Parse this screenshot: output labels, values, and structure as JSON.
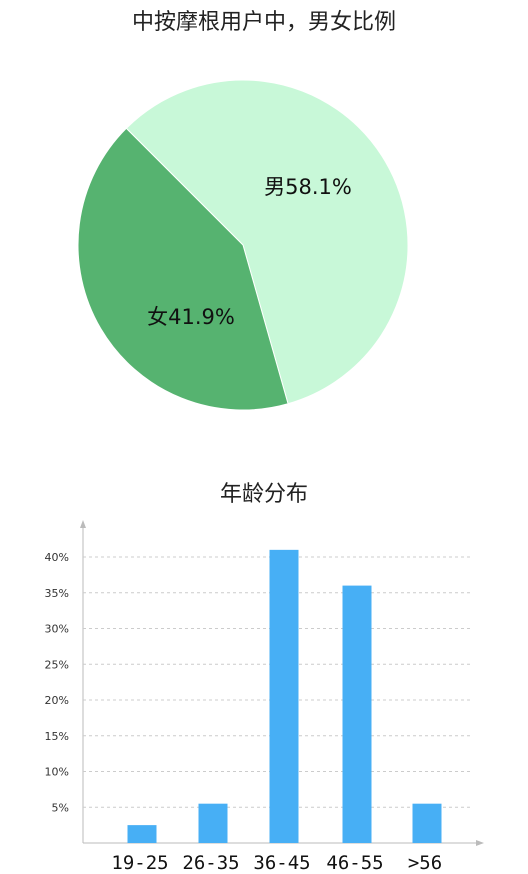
{
  "chart_data": [
    {
      "type": "pie",
      "title": "中按摩根用户中，男女比例",
      "slices": [
        {
          "label": "男58.1%",
          "name": "男",
          "value": 58.1,
          "color": "#c8f8d8"
        },
        {
          "label": "女41.9%",
          "name": "女",
          "value": 41.9,
          "color": "#56b370"
        }
      ]
    },
    {
      "type": "bar",
      "title": "年龄分布",
      "categories": [
        "19-25",
        "26-35",
        "36-45",
        "46-55",
        ">56"
      ],
      "values": [
        2.5,
        5.5,
        41,
        36,
        5.5
      ],
      "yticks": [
        "5%",
        "10%",
        "15%",
        "20%",
        "25%",
        "30%",
        "35%",
        "40%"
      ],
      "ytick_values": [
        5,
        10,
        15,
        20,
        25,
        30,
        35,
        40
      ],
      "ylim": [
        0,
        45
      ],
      "grid": true,
      "bar_color": "#47aff5"
    }
  ]
}
